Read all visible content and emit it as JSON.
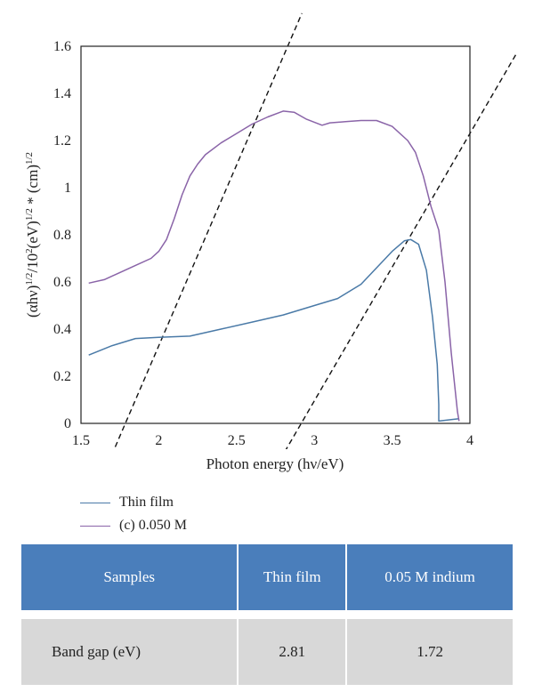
{
  "chart_data": {
    "type": "line",
    "title": "",
    "xlabel": "Photon energy (hν/eV)",
    "ylabel_parts": [
      "(αhν)",
      "1/2",
      "/10",
      "2",
      "(eV)",
      "1/2",
      " * (cm)",
      "1/2"
    ],
    "xlim": [
      1.5,
      4
    ],
    "ylim": [
      0,
      1.6
    ],
    "x_ticks": [
      1.5,
      2,
      2.5,
      3,
      3.5,
      4
    ],
    "x_tick_labels": [
      "1.5",
      "2",
      "2.5",
      "3",
      "3.5",
      "4"
    ],
    "y_ticks": [
      0,
      0.2,
      0.4,
      0.6,
      0.8,
      1,
      1.2,
      1.4,
      1.6
    ],
    "y_tick_labels": [
      "0",
      "0.2",
      "0.4",
      "0.6",
      "0.8",
      "1",
      "1.2",
      "1.4",
      "1.6"
    ],
    "grid": false,
    "legend_position": "below",
    "series": [
      {
        "name": "Thin film",
        "color": "#4a7aa7",
        "points": [
          [
            1.55,
            0.29
          ],
          [
            1.7,
            0.33
          ],
          [
            1.85,
            0.36
          ],
          [
            2.0,
            0.365
          ],
          [
            2.2,
            0.37
          ],
          [
            2.4,
            0.4
          ],
          [
            2.6,
            0.43
          ],
          [
            2.8,
            0.46
          ],
          [
            3.0,
            0.5
          ],
          [
            3.15,
            0.53
          ],
          [
            3.3,
            0.59
          ],
          [
            3.4,
            0.66
          ],
          [
            3.5,
            0.73
          ],
          [
            3.58,
            0.775
          ],
          [
            3.62,
            0.78
          ],
          [
            3.67,
            0.76
          ],
          [
            3.72,
            0.65
          ],
          [
            3.76,
            0.45
          ],
          [
            3.79,
            0.25
          ],
          [
            3.8,
            0.08
          ],
          [
            3.8,
            0.01
          ],
          [
            3.93,
            0.02
          ]
        ]
      },
      {
        "name": "(c) 0.050 M",
        "color": "#8a64a8",
        "points": [
          [
            1.55,
            0.595
          ],
          [
            1.65,
            0.61
          ],
          [
            1.75,
            0.64
          ],
          [
            1.85,
            0.67
          ],
          [
            1.95,
            0.7
          ],
          [
            2.0,
            0.73
          ],
          [
            2.05,
            0.78
          ],
          [
            2.1,
            0.87
          ],
          [
            2.15,
            0.97
          ],
          [
            2.2,
            1.05
          ],
          [
            2.25,
            1.1
          ],
          [
            2.3,
            1.14
          ],
          [
            2.4,
            1.19
          ],
          [
            2.5,
            1.23
          ],
          [
            2.6,
            1.27
          ],
          [
            2.7,
            1.3
          ],
          [
            2.8,
            1.325
          ],
          [
            2.87,
            1.32
          ],
          [
            2.95,
            1.29
          ],
          [
            3.05,
            1.265
          ],
          [
            3.1,
            1.275
          ],
          [
            3.2,
            1.28
          ],
          [
            3.3,
            1.285
          ],
          [
            3.4,
            1.285
          ],
          [
            3.5,
            1.26
          ],
          [
            3.6,
            1.2
          ],
          [
            3.65,
            1.15
          ],
          [
            3.7,
            1.05
          ],
          [
            3.75,
            0.92
          ],
          [
            3.8,
            0.82
          ],
          [
            3.84,
            0.6
          ],
          [
            3.88,
            0.3
          ],
          [
            3.92,
            0.05
          ],
          [
            3.93,
            0.01
          ]
        ]
      }
    ],
    "tangent_lines": [
      {
        "from": [
          1.72,
          -0.1
        ],
        "to": [
          2.92,
          1.74
        ]
      },
      {
        "from": [
          2.81,
          -0.12
        ],
        "to": [
          4.3,
          1.57
        ]
      }
    ]
  },
  "legend": [
    {
      "label": "Thin film",
      "color": "#4a7aa7"
    },
    {
      "label": "(c) 0.050 M",
      "color": "#8a64a8"
    }
  ],
  "table": {
    "headers": [
      "Samples",
      "Thin film",
      "0.05 M indium"
    ],
    "rows": [
      {
        "label": "Band gap (eV)",
        "values": [
          "2.81",
          "1.72"
        ]
      }
    ]
  }
}
